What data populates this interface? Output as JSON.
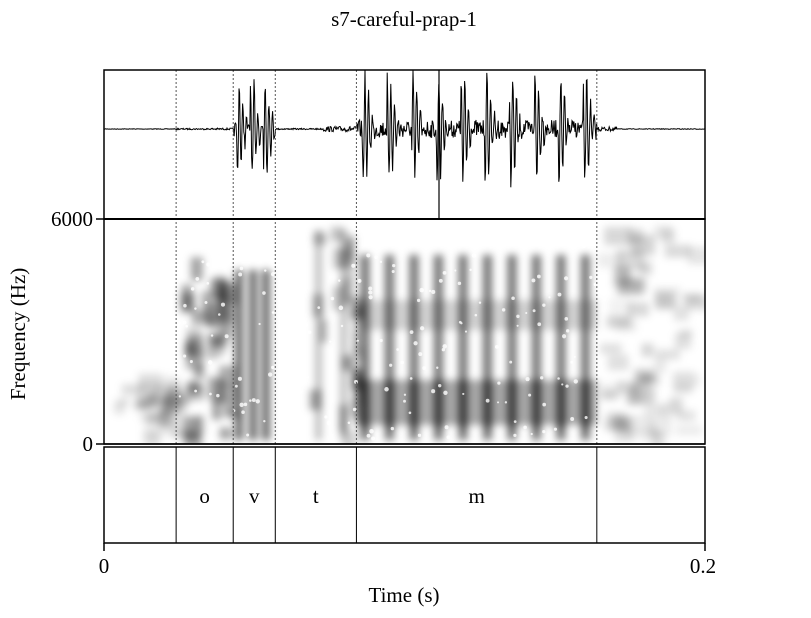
{
  "chart_data": {
    "type": "spectrogram",
    "title": "s7-careful-prap-1",
    "xlabel": "Time (s)",
    "ylabel": "Frequency (Hz)",
    "xlim": [
      0,
      0.2
    ],
    "ylim": [
      0,
      6000
    ],
    "x_ticks": [
      "0",
      "0.2"
    ],
    "y_ticks": [
      "0",
      "6000"
    ],
    "boundaries": [
      0.024,
      0.043,
      0.057,
      0.084,
      0.164
    ],
    "segments": [
      {
        "label": "o",
        "start": 0.024,
        "end": 0.043
      },
      {
        "label": "v",
        "start": 0.043,
        "end": 0.057
      },
      {
        "label": "t",
        "start": 0.057,
        "end": 0.084
      },
      {
        "label": "m",
        "start": 0.084,
        "end": 0.164
      }
    ],
    "grid": false,
    "colors": {
      "ink": "#000000",
      "spectrogram": "#000000",
      "boundary": "#555555"
    }
  }
}
